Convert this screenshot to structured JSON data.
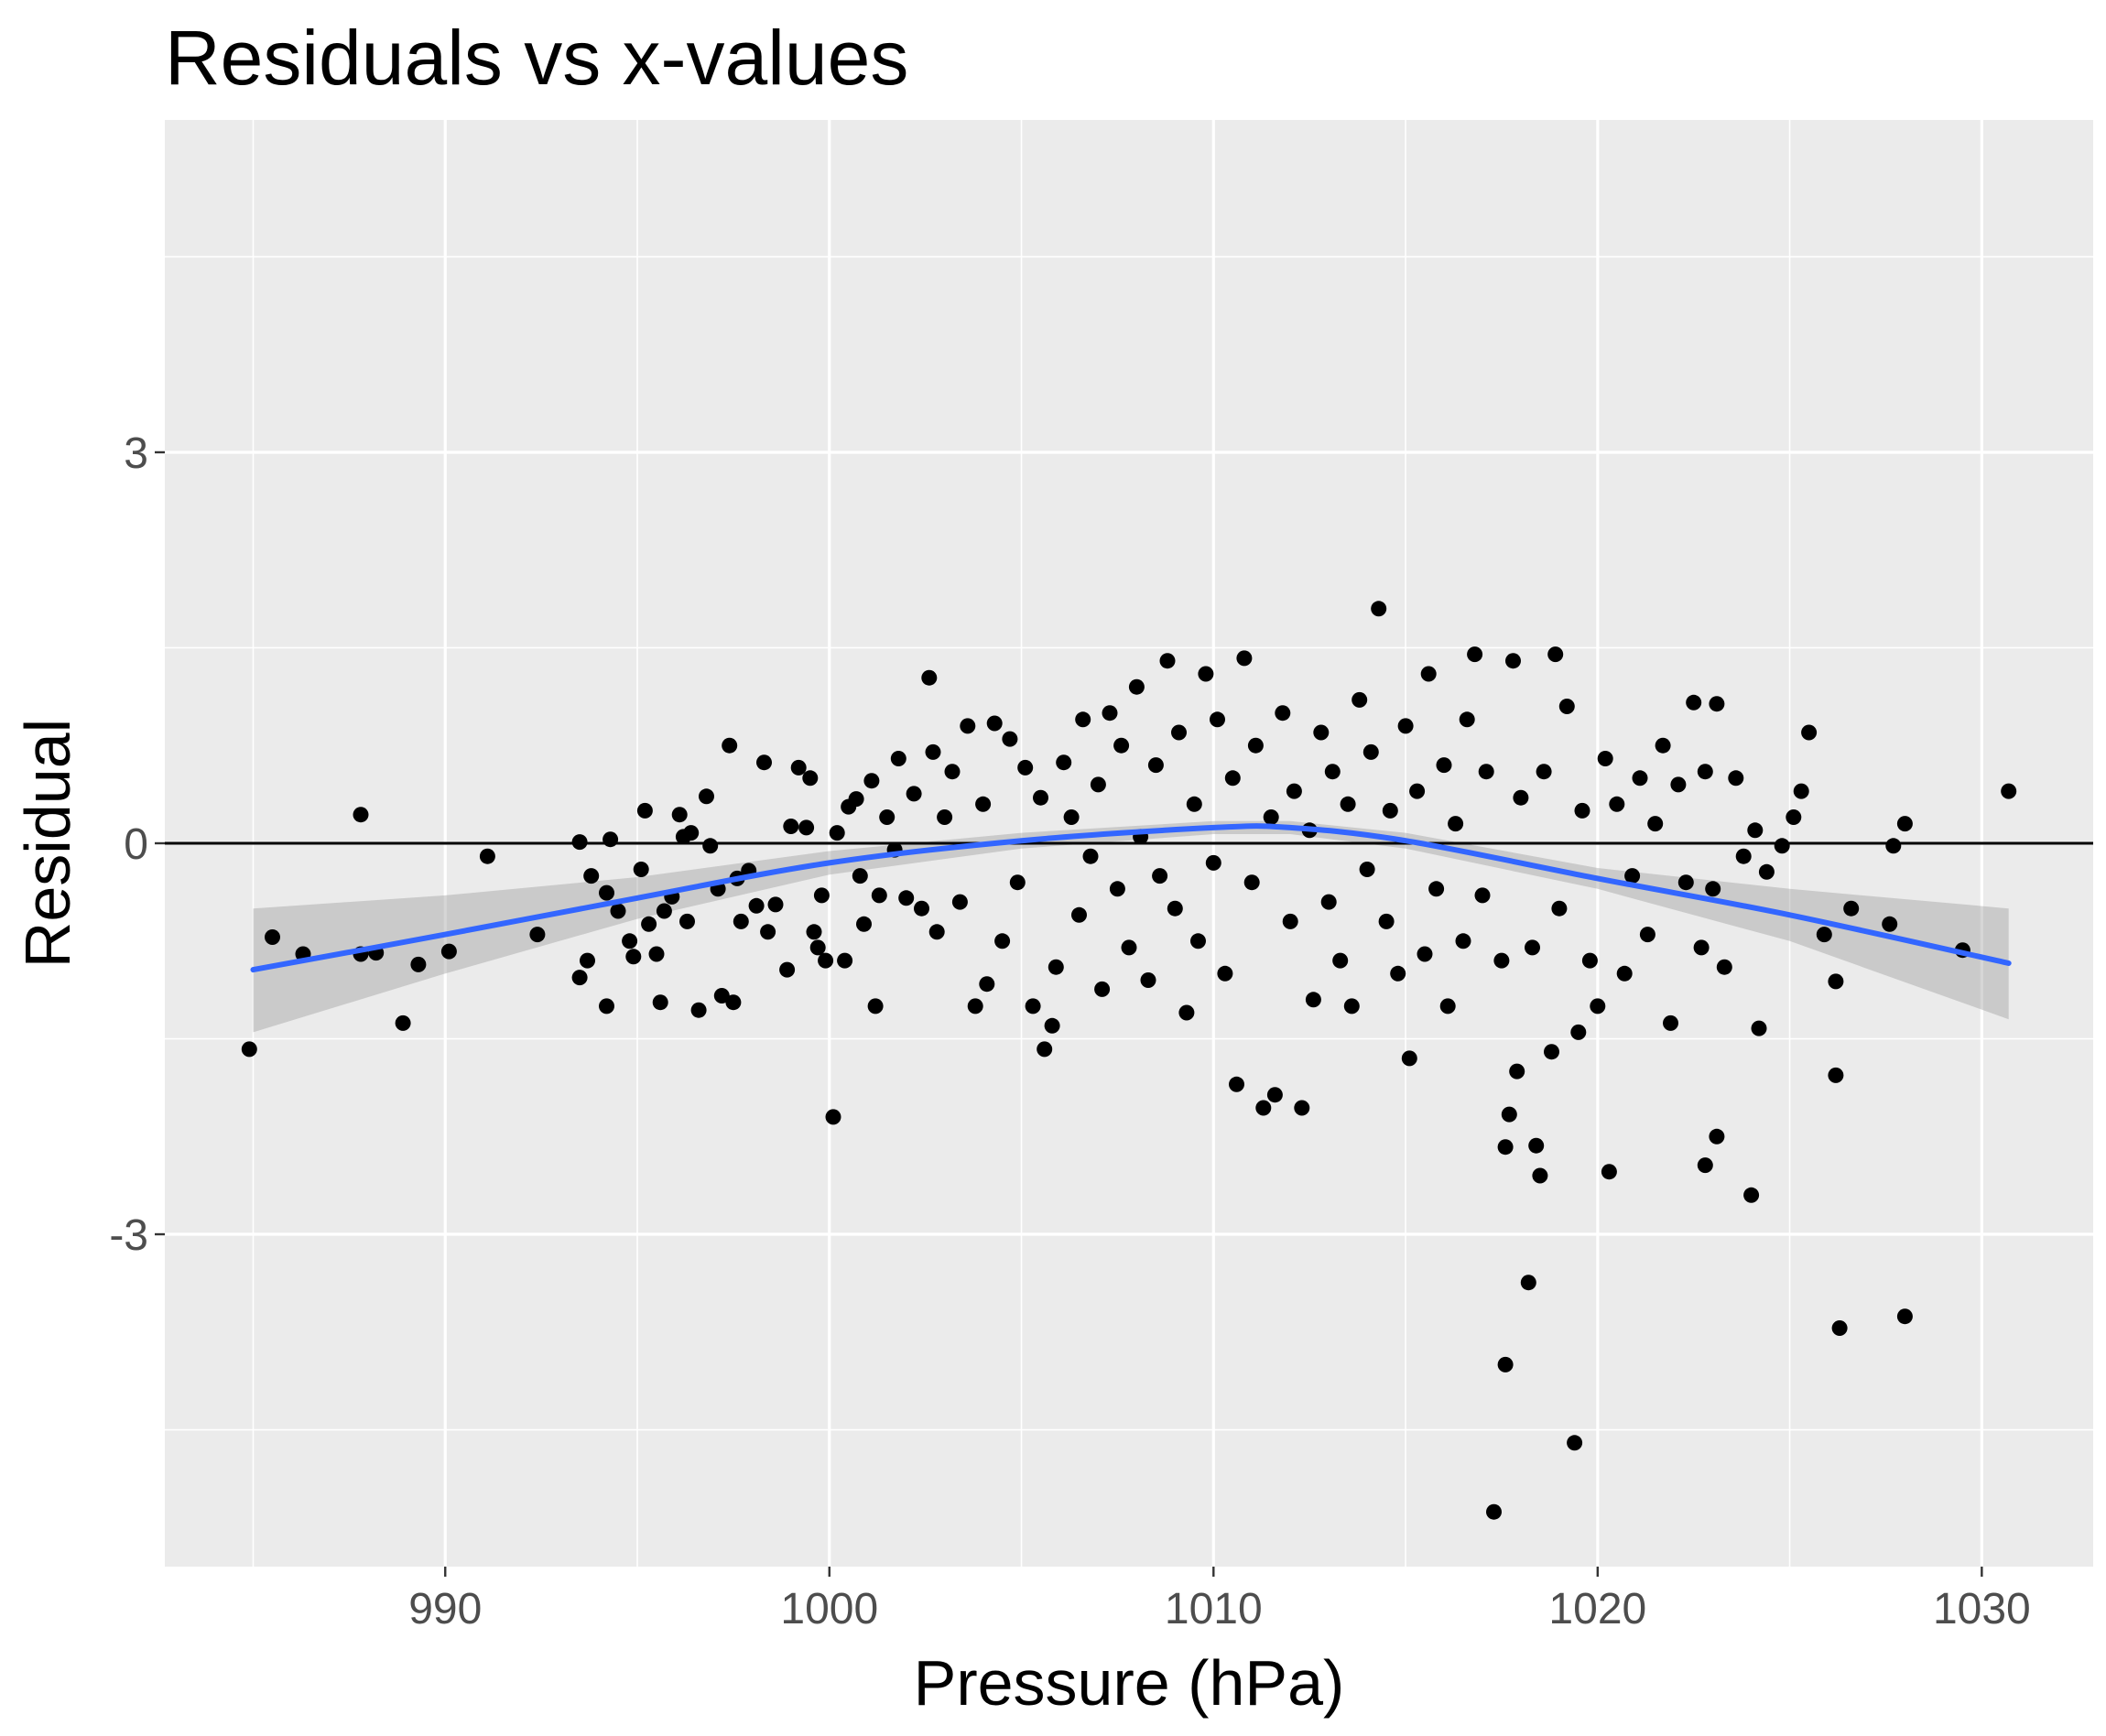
{
  "chart_data": {
    "type": "scatter",
    "title": "Residuals vs x-values",
    "xlabel": "Pressure (hPa)",
    "ylabel": "Residual",
    "xlim": [
      982.7,
      1032.9
    ],
    "ylim": [
      -5.55,
      5.55
    ],
    "x_ticks": [
      990,
      1000,
      1010,
      1020,
      1030
    ],
    "x_tick_labels": [
      "990",
      "1000",
      "1010",
      "1020",
      "1030"
    ],
    "y_ticks": [
      -3,
      0,
      3
    ],
    "y_tick_labels": [
      "-3",
      "0",
      "3"
    ],
    "grid": true,
    "reference_line_y": 0,
    "colors": {
      "panel": "#ebebeb",
      "grid": "#ffffff",
      "points": "#000000",
      "smooth_line": "#3366ff",
      "confidence_band": "#999999",
      "reference_line": "#000000"
    },
    "smooth": {
      "x": [
        985,
        990,
        995,
        1000,
        1005,
        1010,
        1012,
        1015,
        1020,
        1025,
        1030.7
      ],
      "y": [
        -0.97,
        -0.7,
        -0.42,
        -0.15,
        0.02,
        0.12,
        0.12,
        0.02,
        -0.27,
        -0.55,
        -0.92
      ],
      "lower": [
        -1.45,
        -1.0,
        -0.58,
        -0.24,
        -0.04,
        0.07,
        0.07,
        -0.04,
        -0.35,
        -0.75,
        -1.35
      ],
      "upper": [
        -0.5,
        -0.4,
        -0.26,
        -0.06,
        0.08,
        0.17,
        0.17,
        0.08,
        -0.19,
        -0.35,
        -0.5
      ]
    },
    "points": [
      [
        984.9,
        -1.58
      ],
      [
        985.5,
        -0.72
      ],
      [
        986.3,
        -0.85
      ],
      [
        987.8,
        0.22
      ],
      [
        987.8,
        -0.85
      ],
      [
        988.2,
        -0.84
      ],
      [
        988.9,
        -1.38
      ],
      [
        989.3,
        -0.93
      ],
      [
        990.1,
        -0.83
      ],
      [
        991.1,
        -0.1
      ],
      [
        992.4,
        -0.7
      ],
      [
        993.5,
        0.01
      ],
      [
        993.5,
        -1.03
      ],
      [
        993.7,
        -0.9
      ],
      [
        993.8,
        -0.25
      ],
      [
        994.2,
        -0.38
      ],
      [
        994.2,
        -1.25
      ],
      [
        994.3,
        0.03
      ],
      [
        994.5,
        -0.52
      ],
      [
        994.8,
        -0.75
      ],
      [
        994.9,
        -0.87
      ],
      [
        995.1,
        -0.2
      ],
      [
        995.2,
        0.25
      ],
      [
        995.3,
        -0.62
      ],
      [
        995.5,
        -0.85
      ],
      [
        995.6,
        -1.22
      ],
      [
        995.7,
        -0.52
      ],
      [
        995.9,
        -0.41
      ],
      [
        996.1,
        0.22
      ],
      [
        996.2,
        0.05
      ],
      [
        996.3,
        -0.6
      ],
      [
        996.4,
        0.08
      ],
      [
        996.6,
        -1.28
      ],
      [
        996.8,
        0.36
      ],
      [
        996.9,
        -0.02
      ],
      [
        997.1,
        -0.35
      ],
      [
        997.2,
        -1.17
      ],
      [
        997.4,
        0.75
      ],
      [
        997.5,
        -1.22
      ],
      [
        997.6,
        -0.27
      ],
      [
        997.7,
        -0.6
      ],
      [
        997.9,
        -0.21
      ],
      [
        998.1,
        -0.48
      ],
      [
        998.3,
        0.62
      ],
      [
        998.4,
        -0.68
      ],
      [
        998.6,
        -0.47
      ],
      [
        998.9,
        -0.97
      ],
      [
        999.0,
        0.13
      ],
      [
        999.2,
        0.58
      ],
      [
        999.4,
        0.12
      ],
      [
        999.5,
        0.5
      ],
      [
        999.6,
        -0.68
      ],
      [
        999.7,
        -0.8
      ],
      [
        999.8,
        -0.4
      ],
      [
        999.9,
        -0.9
      ],
      [
        1000.1,
        -2.1
      ],
      [
        1000.2,
        0.08
      ],
      [
        1000.4,
        -0.9
      ],
      [
        1000.5,
        0.28
      ],
      [
        1000.7,
        0.34
      ],
      [
        1000.8,
        -0.25
      ],
      [
        1000.9,
        -0.62
      ],
      [
        1001.1,
        0.48
      ],
      [
        1001.2,
        -1.25
      ],
      [
        1001.3,
        -0.4
      ],
      [
        1001.5,
        0.2
      ],
      [
        1001.7,
        -0.05
      ],
      [
        1001.8,
        0.65
      ],
      [
        1002.0,
        -0.42
      ],
      [
        1002.2,
        0.38
      ],
      [
        1002.4,
        -0.5
      ],
      [
        1002.6,
        1.27
      ],
      [
        1002.7,
        0.7
      ],
      [
        1002.8,
        -0.68
      ],
      [
        1003.0,
        0.2
      ],
      [
        1003.2,
        0.55
      ],
      [
        1003.4,
        -0.45
      ],
      [
        1003.6,
        0.9
      ],
      [
        1003.8,
        -1.25
      ],
      [
        1004.0,
        0.3
      ],
      [
        1004.1,
        -1.08
      ],
      [
        1004.3,
        0.92
      ],
      [
        1004.5,
        -0.75
      ],
      [
        1004.7,
        0.8
      ],
      [
        1004.9,
        -0.3
      ],
      [
        1005.1,
        0.58
      ],
      [
        1005.3,
        -1.25
      ],
      [
        1005.5,
        0.35
      ],
      [
        1005.6,
        -1.58
      ],
      [
        1005.8,
        -1.4
      ],
      [
        1005.9,
        -0.95
      ],
      [
        1006.1,
        0.62
      ],
      [
        1006.3,
        0.2
      ],
      [
        1006.5,
        -0.55
      ],
      [
        1006.6,
        0.95
      ],
      [
        1006.8,
        -0.1
      ],
      [
        1007.0,
        0.45
      ],
      [
        1007.1,
        -1.12
      ],
      [
        1007.3,
        1.0
      ],
      [
        1007.5,
        -0.35
      ],
      [
        1007.6,
        0.75
      ],
      [
        1007.8,
        -0.8
      ],
      [
        1008.0,
        1.2
      ],
      [
        1008.1,
        0.05
      ],
      [
        1008.3,
        -1.05
      ],
      [
        1008.5,
        0.6
      ],
      [
        1008.6,
        -0.25
      ],
      [
        1008.8,
        1.4
      ],
      [
        1009.0,
        -0.5
      ],
      [
        1009.1,
        0.85
      ],
      [
        1009.3,
        -1.3
      ],
      [
        1009.5,
        0.3
      ],
      [
        1009.6,
        -0.75
      ],
      [
        1009.8,
        1.3
      ],
      [
        1010.0,
        -0.15
      ],
      [
        1010.1,
        0.95
      ],
      [
        1010.3,
        -1.0
      ],
      [
        1010.5,
        0.5
      ],
      [
        1010.6,
        -1.85
      ],
      [
        1010.8,
        1.42
      ],
      [
        1011.0,
        -0.3
      ],
      [
        1011.1,
        0.75
      ],
      [
        1011.3,
        -2.03
      ],
      [
        1011.5,
        0.2
      ],
      [
        1011.6,
        -1.93
      ],
      [
        1011.8,
        1.0
      ],
      [
        1012.0,
        -0.6
      ],
      [
        1012.1,
        0.4
      ],
      [
        1012.3,
        -2.03
      ],
      [
        1012.5,
        0.1
      ],
      [
        1012.6,
        -1.2
      ],
      [
        1012.8,
        0.85
      ],
      [
        1013.0,
        -0.45
      ],
      [
        1013.1,
        0.55
      ],
      [
        1013.3,
        -0.9
      ],
      [
        1013.5,
        0.3
      ],
      [
        1013.6,
        -1.25
      ],
      [
        1013.8,
        1.1
      ],
      [
        1014.0,
        -0.2
      ],
      [
        1014.1,
        0.7
      ],
      [
        1014.3,
        1.8
      ],
      [
        1014.5,
        -0.6
      ],
      [
        1014.6,
        0.25
      ],
      [
        1014.8,
        -1.0
      ],
      [
        1015.0,
        0.9
      ],
      [
        1015.1,
        -1.65
      ],
      [
        1015.3,
        0.4
      ],
      [
        1015.5,
        -0.85
      ],
      [
        1015.6,
        1.3
      ],
      [
        1015.8,
        -0.35
      ],
      [
        1016.0,
        0.6
      ],
      [
        1016.1,
        -1.25
      ],
      [
        1016.3,
        0.15
      ],
      [
        1016.5,
        -0.75
      ],
      [
        1016.6,
        0.95
      ],
      [
        1016.8,
        1.45
      ],
      [
        1017.0,
        -0.4
      ],
      [
        1017.1,
        0.55
      ],
      [
        1017.3,
        -5.13
      ],
      [
        1017.5,
        -0.9
      ],
      [
        1017.6,
        -4.0
      ],
      [
        1017.6,
        -2.33
      ],
      [
        1017.7,
        -2.08
      ],
      [
        1017.8,
        1.4
      ],
      [
        1017.9,
        -1.75
      ],
      [
        1018.0,
        0.35
      ],
      [
        1018.2,
        -3.37
      ],
      [
        1018.3,
        -0.8
      ],
      [
        1018.4,
        -2.32
      ],
      [
        1018.5,
        -2.55
      ],
      [
        1018.6,
        0.55
      ],
      [
        1018.8,
        -1.6
      ],
      [
        1018.9,
        1.45
      ],
      [
        1019.0,
        -0.5
      ],
      [
        1019.2,
        1.05
      ],
      [
        1019.4,
        -4.6
      ],
      [
        1019.5,
        -1.45
      ],
      [
        1019.6,
        0.25
      ],
      [
        1019.8,
        -0.9
      ],
      [
        1020.0,
        -1.25
      ],
      [
        1020.2,
        0.65
      ],
      [
        1020.3,
        -2.52
      ],
      [
        1020.5,
        0.3
      ],
      [
        1020.7,
        -1.0
      ],
      [
        1020.9,
        -0.25
      ],
      [
        1021.1,
        0.5
      ],
      [
        1021.3,
        -0.7
      ],
      [
        1021.5,
        0.15
      ],
      [
        1021.7,
        0.75
      ],
      [
        1021.9,
        -1.38
      ],
      [
        1022.1,
        0.45
      ],
      [
        1022.3,
        -0.3
      ],
      [
        1022.5,
        1.08
      ],
      [
        1022.7,
        -0.8
      ],
      [
        1022.8,
        0.55
      ],
      [
        1022.8,
        -2.47
      ],
      [
        1023.0,
        -0.35
      ],
      [
        1023.1,
        -2.25
      ],
      [
        1023.1,
        1.07
      ],
      [
        1023.3,
        -0.95
      ],
      [
        1023.6,
        0.5
      ],
      [
        1023.8,
        -0.1
      ],
      [
        1024.0,
        -2.7
      ],
      [
        1024.1,
        0.1
      ],
      [
        1024.2,
        -1.42
      ],
      [
        1024.4,
        -0.22
      ],
      [
        1024.8,
        -0.02
      ],
      [
        1025.1,
        0.2
      ],
      [
        1025.3,
        0.4
      ],
      [
        1025.5,
        0.85
      ],
      [
        1025.9,
        -0.7
      ],
      [
        1026.2,
        -1.06
      ],
      [
        1026.2,
        -1.78
      ],
      [
        1026.3,
        -3.72
      ],
      [
        1026.6,
        -0.5
      ],
      [
        1027.6,
        -0.62
      ],
      [
        1027.7,
        -0.02
      ],
      [
        1028.0,
        0.15
      ],
      [
        1028.0,
        -3.63
      ],
      [
        1029.5,
        -0.82
      ],
      [
        1030.7,
        0.4
      ]
    ]
  }
}
